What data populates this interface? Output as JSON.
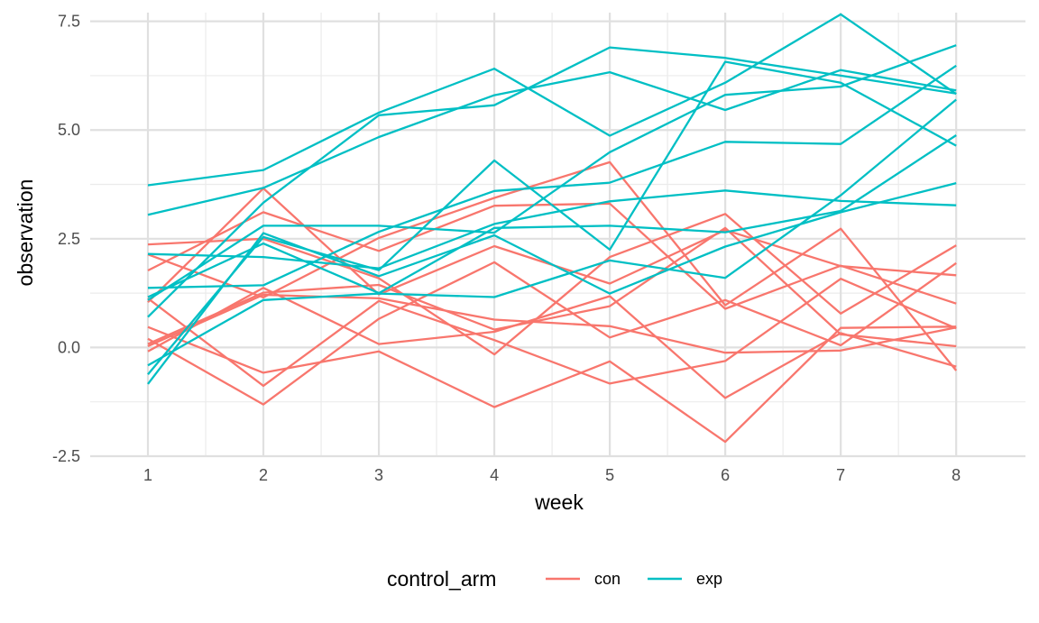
{
  "chart_data": {
    "type": "line",
    "xlabel": "week",
    "ylabel": "observation",
    "x": [
      1,
      2,
      3,
      4,
      5,
      6,
      7,
      8
    ],
    "xlim": [
      0.5,
      8.6
    ],
    "ylim": [
      -2.5,
      7.7
    ],
    "xticks": [
      1,
      2,
      3,
      4,
      5,
      6,
      7,
      8
    ],
    "yticks": [
      -2.5,
      0.0,
      2.5,
      5.0,
      7.5
    ],
    "ytick_labels": [
      "-2.5",
      "0.0",
      "2.5",
      "5.0",
      "7.5"
    ],
    "grid": true,
    "legend": {
      "title": "control_arm",
      "position": "bottom",
      "entries": [
        {
          "label": "con",
          "color": "#F8766D"
        },
        {
          "label": "exp",
          "color": "#00BFC4"
        }
      ]
    },
    "series": [
      {
        "group": "con",
        "color": "#F8766D",
        "values": [
          0.2,
          -1.31,
          0.66,
          1.96,
          0.23,
          1.09,
          0.05,
          1.94
        ]
      },
      {
        "group": "con",
        "color": "#F8766D",
        "values": [
          1.13,
          -0.88,
          1.07,
          0.17,
          -0.83,
          -0.31,
          1.58,
          0.44
        ]
      },
      {
        "group": "con",
        "color": "#F8766D",
        "values": [
          1.77,
          3.11,
          2.22,
          3.26,
          3.31,
          0.89,
          1.88,
          1.01
        ]
      },
      {
        "group": "con",
        "color": "#F8766D",
        "values": [
          1.04,
          3.66,
          1.22,
          2.33,
          1.47,
          2.7,
          1.87,
          1.66
        ]
      },
      {
        "group": "con",
        "color": "#F8766D",
        "values": [
          0.47,
          -0.58,
          -0.09,
          -1.37,
          -0.32,
          -2.17,
          0.45,
          0.48
        ]
      },
      {
        "group": "con",
        "color": "#F8766D",
        "values": [
          2.37,
          2.5,
          1.59,
          -0.16,
          2.08,
          3.07,
          0.78,
          2.35
        ]
      },
      {
        "group": "con",
        "color": "#F8766D",
        "values": [
          0.03,
          1.21,
          1.13,
          0.64,
          0.49,
          -0.12,
          -0.07,
          0.46
        ]
      },
      {
        "group": "con",
        "color": "#F8766D",
        "values": [
          -0.09,
          1.37,
          0.08,
          0.36,
          1.18,
          -1.16,
          0.33,
          -0.44
        ]
      },
      {
        "group": "con",
        "color": "#F8766D",
        "values": [
          0.08,
          1.26,
          1.44,
          0.41,
          0.95,
          2.75,
          0.3,
          0.03
        ]
      },
      {
        "group": "con",
        "color": "#F8766D",
        "values": [
          2.14,
          1.15,
          2.52,
          3.44,
          4.26,
          0.97,
          2.73,
          -0.53
        ]
      },
      {
        "group": "exp",
        "color": "#00BFC4",
        "values": [
          3.05,
          3.67,
          4.84,
          5.8,
          6.33,
          5.46,
          6.38,
          5.91
        ]
      },
      {
        "group": "exp",
        "color": "#00BFC4",
        "values": [
          -0.84,
          2.63,
          1.64,
          2.58,
          1.24,
          2.32,
          3.11,
          3.78
        ]
      },
      {
        "group": "exp",
        "color": "#00BFC4",
        "values": [
          2.15,
          2.08,
          1.82,
          2.84,
          3.36,
          3.61,
          3.37,
          3.27
        ]
      },
      {
        "group": "exp",
        "color": "#00BFC4",
        "values": [
          -0.62,
          2.54,
          1.78,
          4.3,
          2.25,
          6.57,
          6.09,
          4.64
        ]
      },
      {
        "group": "exp",
        "color": "#00BFC4",
        "values": [
          0.7,
          3.33,
          5.34,
          5.57,
          6.9,
          6.66,
          6.25,
          5.84
        ]
      },
      {
        "group": "exp",
        "color": "#00BFC4",
        "values": [
          3.73,
          4.08,
          5.4,
          6.41,
          4.87,
          6.09,
          7.66,
          5.83
        ]
      },
      {
        "group": "exp",
        "color": "#00BFC4",
        "values": [
          1.09,
          2.8,
          2.8,
          2.64,
          4.49,
          5.81,
          6.0,
          6.95
        ]
      },
      {
        "group": "exp",
        "color": "#00BFC4",
        "values": [
          1.37,
          1.43,
          2.66,
          3.6,
          3.79,
          4.73,
          4.68,
          6.48
        ]
      },
      {
        "group": "exp",
        "color": "#00BFC4",
        "values": [
          -0.41,
          1.09,
          1.24,
          1.16,
          2.0,
          1.6,
          3.5,
          5.7
        ]
      },
      {
        "group": "exp",
        "color": "#00BFC4",
        "values": [
          1.16,
          2.39,
          1.25,
          2.75,
          2.8,
          2.65,
          3.14,
          4.88
        ]
      }
    ]
  }
}
